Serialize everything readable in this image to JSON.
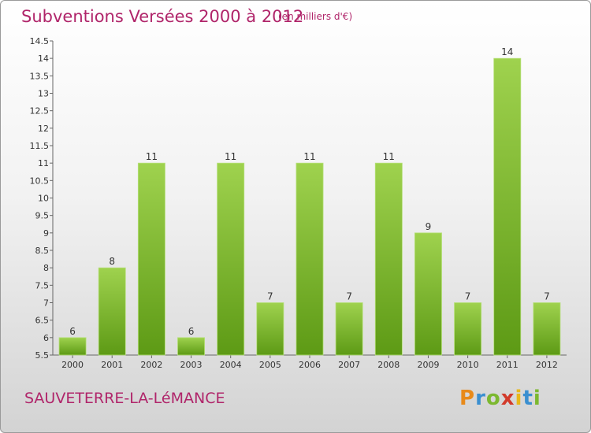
{
  "header": {
    "title": "Subventions Versées 2000 à 2012",
    "subtitle": "(en milliers d'€)"
  },
  "footer": {
    "commune": "SAUVETERRE-LA-LéMANCE",
    "logo_letters": [
      {
        "char": "P",
        "color": "#e88a1a"
      },
      {
        "char": "r",
        "color": "#3a8fd0"
      },
      {
        "char": "o",
        "color": "#7cb82f"
      },
      {
        "char": "x",
        "color": "#d23a2a"
      },
      {
        "char": "i",
        "color": "#e8b81a"
      },
      {
        "char": "t",
        "color": "#3a8fd0"
      },
      {
        "char": "i",
        "color": "#7cb82f"
      }
    ]
  },
  "colors": {
    "bar_top": "#9fd24e",
    "bar_bottom": "#5d9a15",
    "text_accent": "#b0256a"
  },
  "chart_data": {
    "type": "bar",
    "categories": [
      "2000",
      "2001",
      "2002",
      "2003",
      "2004",
      "2005",
      "2006",
      "2007",
      "2008",
      "2009",
      "2010",
      "2011",
      "2012"
    ],
    "values": [
      6,
      8,
      11,
      6,
      11,
      7,
      11,
      7,
      11,
      9,
      7,
      14,
      7
    ],
    "data_labels": [
      "6",
      "8",
      "11",
      "6",
      "11",
      "7",
      "11",
      "7",
      "11",
      "9",
      "7",
      "14",
      "7"
    ],
    "y_ticks": [
      "5.5",
      "6",
      "6.5",
      "7",
      "7.5",
      "8",
      "8.5",
      "9",
      "9.5",
      "10",
      "10.5",
      "11",
      "11.5",
      "12",
      "12.5",
      "13",
      "13.5",
      "14",
      "14.5"
    ],
    "ylim": [
      5.5,
      14.5
    ],
    "grid": false,
    "title": "Subventions Versées 2000 à 2012",
    "xlabel": "",
    "ylabel": ""
  }
}
